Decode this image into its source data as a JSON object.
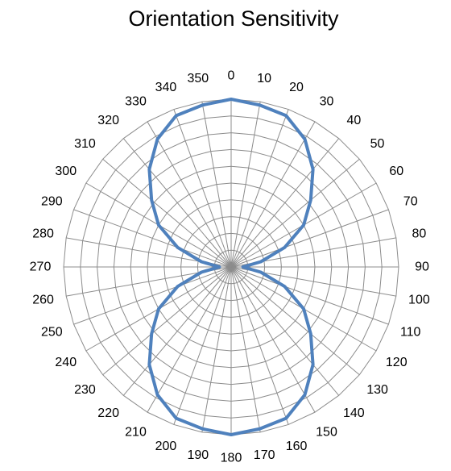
{
  "chart_data": {
    "type": "radar",
    "title": "Orientation Sensitivity",
    "angle_labels": [
      "0",
      "10",
      "20",
      "30",
      "40",
      "50",
      "60",
      "70",
      "80",
      "90",
      "100",
      "110",
      "120",
      "130",
      "140",
      "150",
      "160",
      "170",
      "180",
      "190",
      "200",
      "210",
      "220",
      "230",
      "240",
      "250",
      "260",
      "270",
      "280",
      "290",
      "300",
      "310",
      "320",
      "330",
      "340",
      "350"
    ],
    "rlim": [
      0,
      1
    ],
    "ring_count": 10,
    "grid": true,
    "legend": "none",
    "series": [
      {
        "values": [
          1.0,
          0.98,
          0.96,
          0.88,
          0.76,
          0.62,
          0.5,
          0.34,
          0.18,
          0.07,
          0.18,
          0.34,
          0.5,
          0.62,
          0.76,
          0.88,
          0.96,
          0.98,
          1.0,
          0.98,
          0.96,
          0.88,
          0.76,
          0.62,
          0.5,
          0.34,
          0.18,
          0.07,
          0.18,
          0.34,
          0.5,
          0.62,
          0.76,
          0.88,
          0.96,
          0.98
        ],
        "color": "#4f81bd"
      }
    ]
  }
}
